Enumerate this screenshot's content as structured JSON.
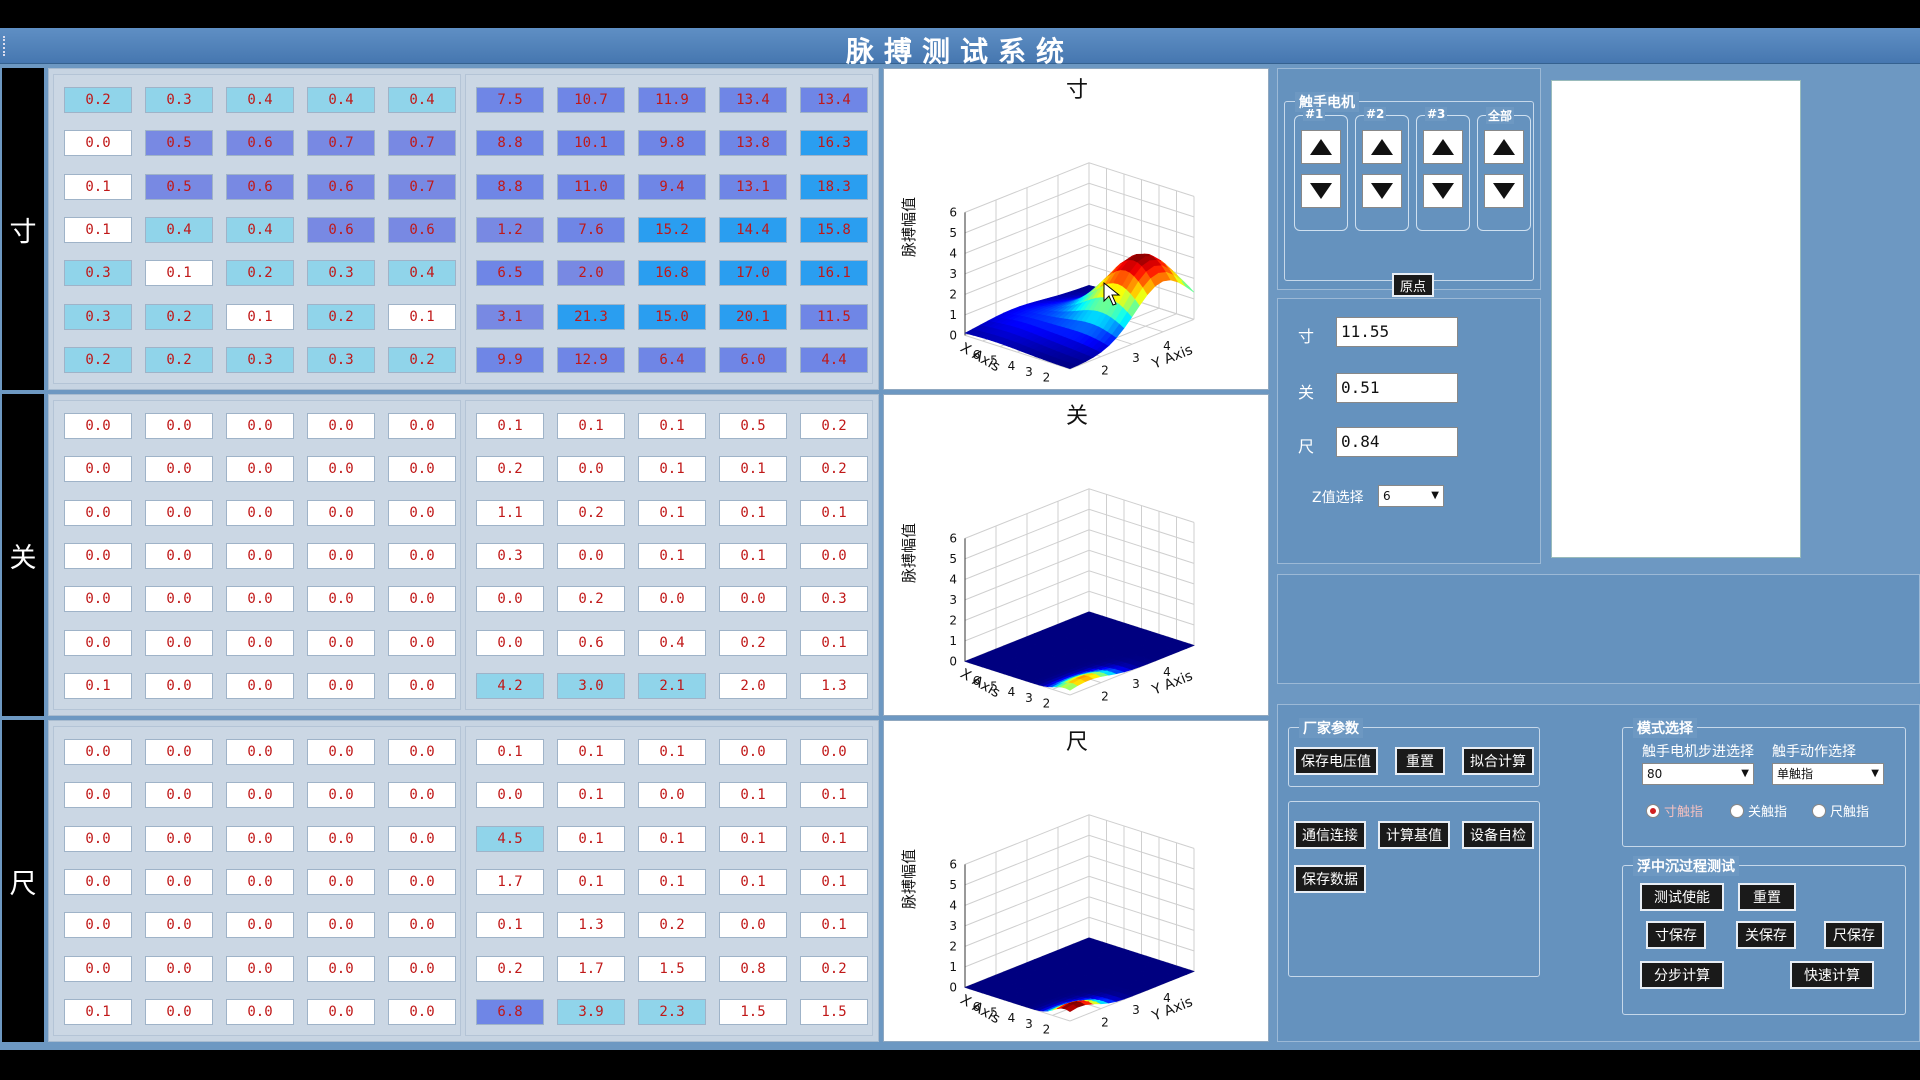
{
  "app": {
    "title": "脉搏测试系统"
  },
  "regions": [
    "寸",
    "关",
    "尺"
  ],
  "grids": [
    {
      "left": [
        [
          "0.2",
          "0.3",
          "0.4",
          "0.4",
          "0.4"
        ],
        [
          "0.0",
          "0.5",
          "0.6",
          "0.7",
          "0.7"
        ],
        [
          "0.1",
          "0.5",
          "0.6",
          "0.6",
          "0.7"
        ],
        [
          "0.1",
          "0.4",
          "0.4",
          "0.6",
          "0.6"
        ],
        [
          "0.3",
          "0.1",
          "0.2",
          "0.3",
          "0.4"
        ],
        [
          "0.3",
          "0.2",
          "0.1",
          "0.2",
          "0.1"
        ],
        [
          "0.2",
          "0.2",
          "0.3",
          "0.3",
          "0.2"
        ]
      ],
      "right": [
        [
          "7.5",
          "10.7",
          "11.9",
          "13.4",
          "13.4"
        ],
        [
          "8.8",
          "10.1",
          "9.8",
          "13.8",
          "16.3"
        ],
        [
          "8.8",
          "11.0",
          "9.4",
          "13.1",
          "18.3"
        ],
        [
          "1.2",
          "7.6",
          "15.2",
          "14.4",
          "15.8"
        ],
        [
          "6.5",
          "2.0",
          "16.8",
          "17.0",
          "16.1"
        ],
        [
          "3.1",
          "21.3",
          "15.0",
          "20.1",
          "11.5"
        ],
        [
          "9.9",
          "12.9",
          "6.4",
          "6.0",
          "4.4"
        ]
      ]
    },
    {
      "left": [
        [
          "0.0",
          "0.0",
          "0.0",
          "0.0",
          "0.0"
        ],
        [
          "0.0",
          "0.0",
          "0.0",
          "0.0",
          "0.0"
        ],
        [
          "0.0",
          "0.0",
          "0.0",
          "0.0",
          "0.0"
        ],
        [
          "0.0",
          "0.0",
          "0.0",
          "0.0",
          "0.0"
        ],
        [
          "0.0",
          "0.0",
          "0.0",
          "0.0",
          "0.0"
        ],
        [
          "0.0",
          "0.0",
          "0.0",
          "0.0",
          "0.0"
        ],
        [
          "0.1",
          "0.0",
          "0.0",
          "0.0",
          "0.0"
        ]
      ],
      "right": [
        [
          "0.1",
          "0.1",
          "0.1",
          "0.5",
          "0.2"
        ],
        [
          "0.2",
          "0.0",
          "0.1",
          "0.1",
          "0.2"
        ],
        [
          "1.1",
          "0.2",
          "0.1",
          "0.1",
          "0.1"
        ],
        [
          "0.3",
          "0.0",
          "0.1",
          "0.1",
          "0.0"
        ],
        [
          "0.0",
          "0.2",
          "0.0",
          "0.0",
          "0.3"
        ],
        [
          "0.0",
          "0.6",
          "0.4",
          "0.2",
          "0.1"
        ],
        [
          "4.2",
          "3.0",
          "2.1",
          "2.0",
          "1.3"
        ]
      ]
    },
    {
      "left": [
        [
          "0.0",
          "0.0",
          "0.0",
          "0.0",
          "0.0"
        ],
        [
          "0.0",
          "0.0",
          "0.0",
          "0.0",
          "0.0"
        ],
        [
          "0.0",
          "0.0",
          "0.0",
          "0.0",
          "0.0"
        ],
        [
          "0.0",
          "0.0",
          "0.0",
          "0.0",
          "0.0"
        ],
        [
          "0.0",
          "0.0",
          "0.0",
          "0.0",
          "0.0"
        ],
        [
          "0.0",
          "0.0",
          "0.0",
          "0.0",
          "0.0"
        ],
        [
          "0.1",
          "0.0",
          "0.0",
          "0.0",
          "0.0"
        ]
      ],
      "right": [
        [
          "0.1",
          "0.1",
          "0.1",
          "0.0",
          "0.0"
        ],
        [
          "0.0",
          "0.1",
          "0.0",
          "0.1",
          "0.1"
        ],
        [
          "4.5",
          "0.1",
          "0.1",
          "0.1",
          "0.1"
        ],
        [
          "1.7",
          "0.1",
          "0.1",
          "0.1",
          "0.1"
        ],
        [
          "0.1",
          "1.3",
          "0.2",
          "0.0",
          "0.1"
        ],
        [
          "0.2",
          "1.7",
          "1.5",
          "0.8",
          "0.2"
        ],
        [
          "6.8",
          "3.9",
          "2.3",
          "1.5",
          "1.5"
        ]
      ]
    }
  ],
  "charts": {
    "titles": [
      "寸",
      "关",
      "尺"
    ],
    "zlabel": "脉搏幅值",
    "xlabel": "X Axis",
    "ylabel": "Y Axis",
    "zticks": [
      "0",
      "1",
      "2",
      "3",
      "4",
      "5",
      "6"
    ],
    "xticks": [
      "6",
      "5",
      "4",
      "3",
      "2"
    ],
    "yticks": [
      "2",
      "3",
      "4"
    ]
  },
  "chart_data": [
    {
      "type": "surface",
      "title": "寸",
      "zlabel": "脉搏幅值",
      "xlabel": "X Axis",
      "ylabel": "Y Axis",
      "zlim": [
        0,
        6
      ],
      "xlim": [
        1,
        7
      ],
      "ylim": [
        1,
        5
      ],
      "peak_z": 3.6,
      "peak_location": "center-right"
    },
    {
      "type": "surface",
      "title": "关",
      "zlabel": "脉搏幅值",
      "xlabel": "X Axis",
      "ylabel": "Y Axis",
      "zlim": [
        0,
        6
      ],
      "xlim": [
        1,
        7
      ],
      "ylim": [
        1,
        5
      ],
      "peak_z": 0.4,
      "peak_location": "near-x-1"
    },
    {
      "type": "surface",
      "title": "尺",
      "zlabel": "脉搏幅值",
      "xlabel": "X Axis",
      "ylabel": "Y Axis",
      "zlim": [
        0,
        6
      ],
      "xlim": [
        1,
        7
      ],
      "ylim": [
        1,
        5
      ],
      "peak_z": 0.6,
      "peak_location": "near-x-1"
    }
  ],
  "motor": {
    "legend": "触手电机",
    "columns": [
      "#1",
      "#2",
      "#3",
      "全部"
    ],
    "origin_label": "原点"
  },
  "values": {
    "cun_label": "寸",
    "cun_value": "11.55",
    "guan_label": "关",
    "guan_value": "0.51",
    "chi_label": "尺",
    "chi_value": "0.84",
    "z_label": "Z值选择",
    "z_value": "6"
  },
  "factory": {
    "legend": "厂家参数",
    "save_voltage": "保存电压值",
    "reset": "重置",
    "fit_calc": "拟合计算",
    "comm_connect": "通信连接",
    "calc_base": "计算基值",
    "self_check": "设备自检",
    "save_data": "保存数据"
  },
  "mode": {
    "legend": "模式选择",
    "step_label": "触手电机步进选择",
    "action_label": "触手动作选择",
    "step_value": "80",
    "action_value": "单触指",
    "radios": [
      "寸触指",
      "关触指",
      "尺触指"
    ]
  },
  "process": {
    "legend": "浮中沉过程测试",
    "enable": "测试使能",
    "reset": "重置",
    "cun_save": "寸保存",
    "guan_save": "关保存",
    "chi_save": "尺保存",
    "step_calc": "分步计算",
    "quick_calc": "快速计算"
  }
}
